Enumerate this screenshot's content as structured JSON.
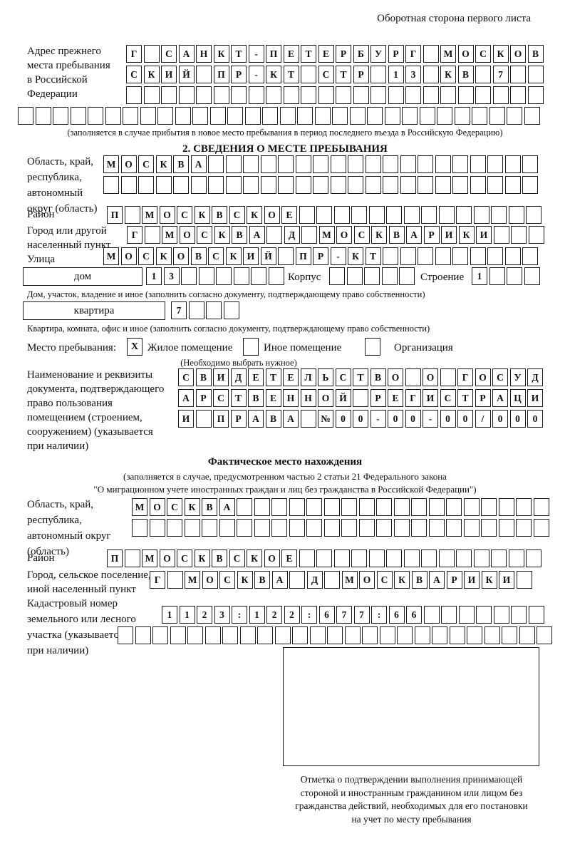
{
  "page": {
    "header_note": "Оборотная сторона первого листа"
  },
  "prev_address": {
    "label_lines": [
      "Адрес прежнего",
      "места пребывания",
      "в Российской",
      "Федерации"
    ],
    "rows": [
      {
        "text": "Г САНКТ-ПЕТЕРБУРГ МОСКОВ",
        "count": 24
      },
      {
        "text": "СКИЙ ПР-КТ СТР 13 КВ 7",
        "count": 24
      },
      {
        "text": "",
        "count": 24
      },
      {
        "text": "",
        "count": 30
      }
    ],
    "note": "(заполняется в случае прибытия в новое место пребывания в период последнего въезда в Российскую Федерацию)"
  },
  "section2": {
    "title": "2. СВЕДЕНИЯ О МЕСТЕ ПРЕБЫВАНИЯ",
    "oblast": {
      "label_lines": [
        "Область, край,",
        "республика,",
        "автономный",
        "округ (область)"
      ],
      "rows": [
        {
          "text": "МОСКВА",
          "count": 25
        },
        {
          "text": "",
          "count": 25
        }
      ]
    },
    "rayon": {
      "label": "Район",
      "row": {
        "text": "П МОСКВСКОЕ",
        "count": 25
      }
    },
    "gorod": {
      "label_lines": [
        "Город или другой",
        "населенный пункт"
      ],
      "row": {
        "text": "Г МОСКВА Д МОСКВАРИКИ",
        "count": 24
      }
    },
    "ulitsa": {
      "label": "Улица",
      "row": {
        "text": "МОСКОВСКИЙ ПР-КТ",
        "count": 25
      }
    },
    "dom": {
      "label": "дом",
      "row": {
        "text": "13",
        "count": 8
      }
    },
    "korpus": {
      "label": "Корпус",
      "row": {
        "text": "",
        "count": 5
      }
    },
    "stroenie": {
      "label": "Строение",
      "row": {
        "text": "1",
        "count": 4
      }
    },
    "dom_note": "Дом, участок, владение и иное (заполнить согласно документу, подтверждающему право собственности)",
    "kvartira": {
      "label": "квартира",
      "row": {
        "text": "7",
        "count": 4
      }
    },
    "kvartira_note": "Квартира, комната, офис и иное (заполнить согласно документу, подтверждающему право собственности)",
    "mesto": {
      "label": "Место пребывания:",
      "options": [
        {
          "label": "Жилое помещение",
          "mark": "X"
        },
        {
          "label": "Иное помещение",
          "mark": ""
        },
        {
          "label": "Организация",
          "mark": ""
        }
      ],
      "note": "(Необходимо выбрать нужное)"
    },
    "doc": {
      "label_lines": [
        "Наименование и реквизиты",
        "документа, подтверждающего",
        "право пользования",
        "помещением (строением,",
        "сооружением) (указывается",
        "при наличии)"
      ],
      "rows": [
        {
          "text": "СВИДЕТЕЛЬСТВО О ГОСУД",
          "count": 21
        },
        {
          "text": "АРСТВЕННОЙ РЕГИСТРАЦИ",
          "count": 21
        },
        {
          "text": "И ПРАВА №00-00-00/000",
          "count": 21
        }
      ]
    }
  },
  "actual_location": {
    "title": "Фактическое место нахождения",
    "note_lines": [
      "(заполняется в случае, предусмотренном частью 2 статьи 21 Федерального закона",
      "\"О миграционном учете иностранных граждан и лиц без гражданства в Российской Федерации\")"
    ],
    "oblast": {
      "label_lines": [
        "Область, край,",
        "республика,",
        "автономный округ",
        "(область)"
      ],
      "rows": [
        {
          "text": "МОСКВА",
          "count": 24
        },
        {
          "text": "",
          "count": 24
        }
      ]
    },
    "rayon": {
      "label": "Район",
      "row": {
        "text": "П МОСКВСКОЕ",
        "count": 25
      }
    },
    "gorod": {
      "label_lines": [
        "Город, сельское поселение,",
        "иной населенный пункт"
      ],
      "row": {
        "text": "Г МОСКВА Д МОСКВАРИКИ",
        "count": 22
      }
    },
    "kadastr": {
      "label_lines": [
        "Кадастровый номер",
        "земельного или лесного",
        "участка (указывается",
        "при наличии)"
      ],
      "rows": [
        {
          "text": "1123:122:677:66",
          "count": 22
        },
        {
          "text": "",
          "count": 25
        }
      ]
    },
    "stamp_caption_lines": [
      "Отметка о подтверждении выполнения принимающей",
      "стороной и иностранным гражданином или лицом без",
      "гражданства действий, необходимых для его постановки",
      "на учет по месту пребывания"
    ]
  }
}
